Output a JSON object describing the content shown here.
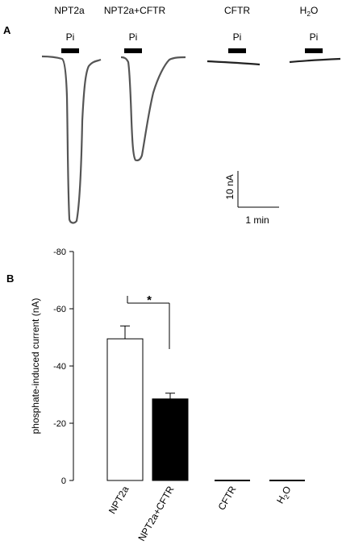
{
  "panel_a": {
    "label": "A",
    "conditions": [
      "NPT2a",
      "NPT2a+CFTR",
      "CFTR",
      "H2O"
    ],
    "stimulus_label": "Pi",
    "scalebar": {
      "y_label": "10 nA",
      "x_label": "1 min"
    },
    "trace_color": "#555555",
    "chart_data": {
      "type": "line",
      "title": "",
      "description_units": "current traces",
      "series": [
        {
          "name": "NPT2a",
          "peak_current_nA": -49
        },
        {
          "name": "NPT2a+CFTR",
          "peak_current_nA": -29
        },
        {
          "name": "CFTR",
          "peak_current_nA": 0
        },
        {
          "name": "H2O",
          "peak_current_nA": 0
        }
      ]
    }
  },
  "panel_b": {
    "label": "B",
    "significance": "*",
    "chart_data": {
      "type": "bar",
      "categories": [
        "NPT2a",
        "NPT2a+CFTR",
        "CFTR",
        "H2O"
      ],
      "values": [
        -49.5,
        -28.5,
        0,
        0
      ],
      "errors": [
        4.5,
        2.0,
        0,
        0
      ],
      "bar_fill": [
        "#ffffff",
        "#000000",
        "#000000",
        "#000000"
      ],
      "ylabel": "phosphate-induced current (nA)",
      "xlabel": "",
      "ylim": [
        0,
        -80
      ],
      "yticks": [
        0,
        -20,
        -40,
        -60,
        -80
      ],
      "ytick_labels": [
        "0",
        "-20",
        "-40",
        "-60",
        "-80"
      ]
    }
  }
}
